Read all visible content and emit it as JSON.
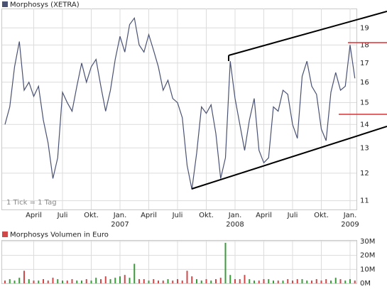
{
  "chart_data": [
    {
      "type": "line",
      "log_scale": true,
      "grid": true,
      "series": [
        {
          "name": "Morphosys (XETRA)",
          "color": "#4a5274",
          "values": [
            14.0,
            14.8,
            16.8,
            18.2,
            15.6,
            16.0,
            15.3,
            15.8,
            14.2,
            13.2,
            11.8,
            12.6,
            15.5,
            15.0,
            14.6,
            15.8,
            17.0,
            16.0,
            16.8,
            17.2,
            15.8,
            14.6,
            15.6,
            17.2,
            18.5,
            17.6,
            19.2,
            19.6,
            18.0,
            17.6,
            18.6,
            17.7,
            16.8,
            15.6,
            16.1,
            15.2,
            15.0,
            14.3,
            12.3,
            11.4,
            12.8,
            14.8,
            14.5,
            14.9,
            13.6,
            11.8,
            12.6,
            17.1,
            15.2,
            14.0,
            12.9,
            14.2,
            15.2,
            12.9,
            12.4,
            12.6,
            14.8,
            14.6,
            15.6,
            15.4,
            14.0,
            13.4,
            16.3,
            17.1,
            15.8,
            15.4,
            13.8,
            13.3,
            15.5,
            16.5,
            15.6,
            15.8,
            18.0,
            16.2
          ]
        }
      ],
      "categories": [
        null,
        null,
        null,
        null,
        null,
        null,
        "April",
        null,
        null,
        null,
        null,
        null,
        "Juli",
        null,
        null,
        null,
        null,
        null,
        "Okt.",
        null,
        null,
        null,
        null,
        null,
        "Jan.",
        null,
        null,
        null,
        null,
        null,
        "April",
        null,
        null,
        null,
        null,
        null,
        "Juli",
        null,
        null,
        null,
        null,
        null,
        "Okt.",
        null,
        null,
        null,
        null,
        null,
        "Jan.",
        null,
        null,
        null,
        null,
        null,
        "April",
        null,
        null,
        null,
        null,
        null,
        "Juli",
        null,
        null,
        null,
        null,
        null,
        "Okt.",
        null,
        null,
        null,
        null,
        null,
        "Jan.",
        null
      ],
      "years": [
        null,
        null,
        null,
        null,
        null,
        null,
        null,
        null,
        null,
        null,
        null,
        null,
        null,
        null,
        null,
        null,
        null,
        null,
        null,
        null,
        null,
        null,
        null,
        null,
        "2007",
        null,
        null,
        null,
        null,
        null,
        null,
        null,
        null,
        null,
        null,
        null,
        null,
        null,
        null,
        null,
        null,
        null,
        null,
        null,
        null,
        null,
        null,
        null,
        "2008",
        null,
        null,
        null,
        null,
        null,
        null,
        null,
        null,
        null,
        null,
        null,
        null,
        null,
        null,
        null,
        null,
        null,
        null,
        null,
        null,
        null,
        null,
        null,
        "2009",
        null
      ],
      "ylim": [
        10.7,
        20.2
      ],
      "yticks": [
        11,
        12,
        13,
        14,
        15,
        16,
        17,
        18,
        19
      ],
      "annotation": "1 Tick = 1 Tag"
    },
    {
      "type": "bar",
      "grid": true,
      "series": [
        {
          "name": "Morphosys Volumen in Euro",
          "color": "#d04848",
          "up_color": "#3c9c3c",
          "values": [
            2,
            3,
            2,
            4,
            9,
            3,
            2,
            2,
            3,
            2,
            4,
            3,
            2,
            2,
            3,
            2,
            2,
            3,
            2,
            4,
            3,
            5,
            3,
            4,
            5,
            6,
            4,
            14,
            3,
            3,
            2,
            3,
            2,
            2,
            3,
            2,
            3,
            2,
            9,
            5,
            3,
            2,
            3,
            2,
            3,
            4,
            29,
            6,
            3,
            3,
            6,
            3,
            2,
            2,
            3,
            3,
            2,
            2,
            2,
            3,
            2,
            3,
            3,
            2,
            2,
            3,
            2,
            3,
            2,
            4,
            3,
            2,
            3,
            2
          ]
        }
      ],
      "ylim": [
        0,
        30.5
      ],
      "yticks": [
        {
          "value": 0,
          "label": "0M"
        },
        {
          "value": 10,
          "label": "10M"
        },
        {
          "value": 20,
          "label": "20M"
        },
        {
          "value": 30,
          "label": "30M"
        }
      ]
    }
  ]
}
